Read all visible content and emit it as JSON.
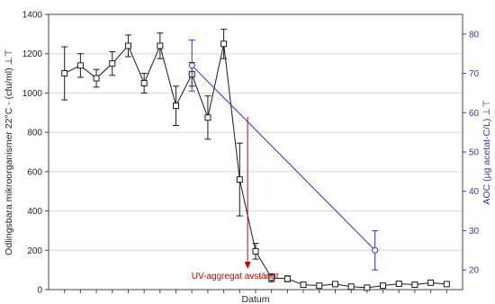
{
  "chart_data": {
    "type": "line",
    "title": "",
    "xlabel": "Datum",
    "ylabel_left": "Odlingsbara mikroorganismer 22°C - (cfu/ml) ⊥⊤",
    "ylabel_right": "AOC (µg acetat-C/L) ⊥⊤",
    "ylim_left": [
      0,
      1400
    ],
    "ylim_right": [
      15,
      85
    ],
    "yticks_left": [
      "0",
      "200",
      "400",
      "600",
      "800",
      "1000",
      "1200",
      "1400"
    ],
    "yticks_right": [
      "20",
      "30",
      "40",
      "50",
      "60",
      "70",
      "80"
    ],
    "grid": true,
    "colors": {
      "left_series": "#1a1a1a",
      "right_series": "#3333cc",
      "annotation": "#cc0000",
      "grid": "#d8d8d8"
    },
    "series": [
      {
        "axis": "left",
        "marker": "square",
        "x": [
          1,
          2,
          3,
          4,
          5,
          6,
          7,
          8,
          9,
          10,
          11,
          12,
          13,
          14,
          15,
          16,
          17,
          18,
          19,
          20,
          21,
          22,
          23,
          24,
          25
        ],
        "values": [
          1100,
          1140,
          1075,
          1150,
          1240,
          1050,
          1240,
          935,
          1095,
          875,
          1250,
          560,
          195,
          60,
          55,
          25,
          20,
          28,
          15,
          10,
          20,
          30,
          25,
          35,
          28
        ],
        "error": [
          135,
          60,
          45,
          60,
          55,
          50,
          65,
          100,
          60,
          110,
          75,
          185,
          40,
          20,
          15,
          8,
          8,
          8,
          8,
          6,
          8,
          8,
          8,
          8,
          8
        ]
      },
      {
        "axis": "right",
        "marker": "circle",
        "x": [
          9,
          20.5
        ],
        "values": [
          72,
          25
        ],
        "error": [
          6.5,
          5
        ]
      }
    ],
    "annotations": [
      {
        "text": "UV-aggregat avstängt",
        "x": 12.5
      }
    ]
  }
}
